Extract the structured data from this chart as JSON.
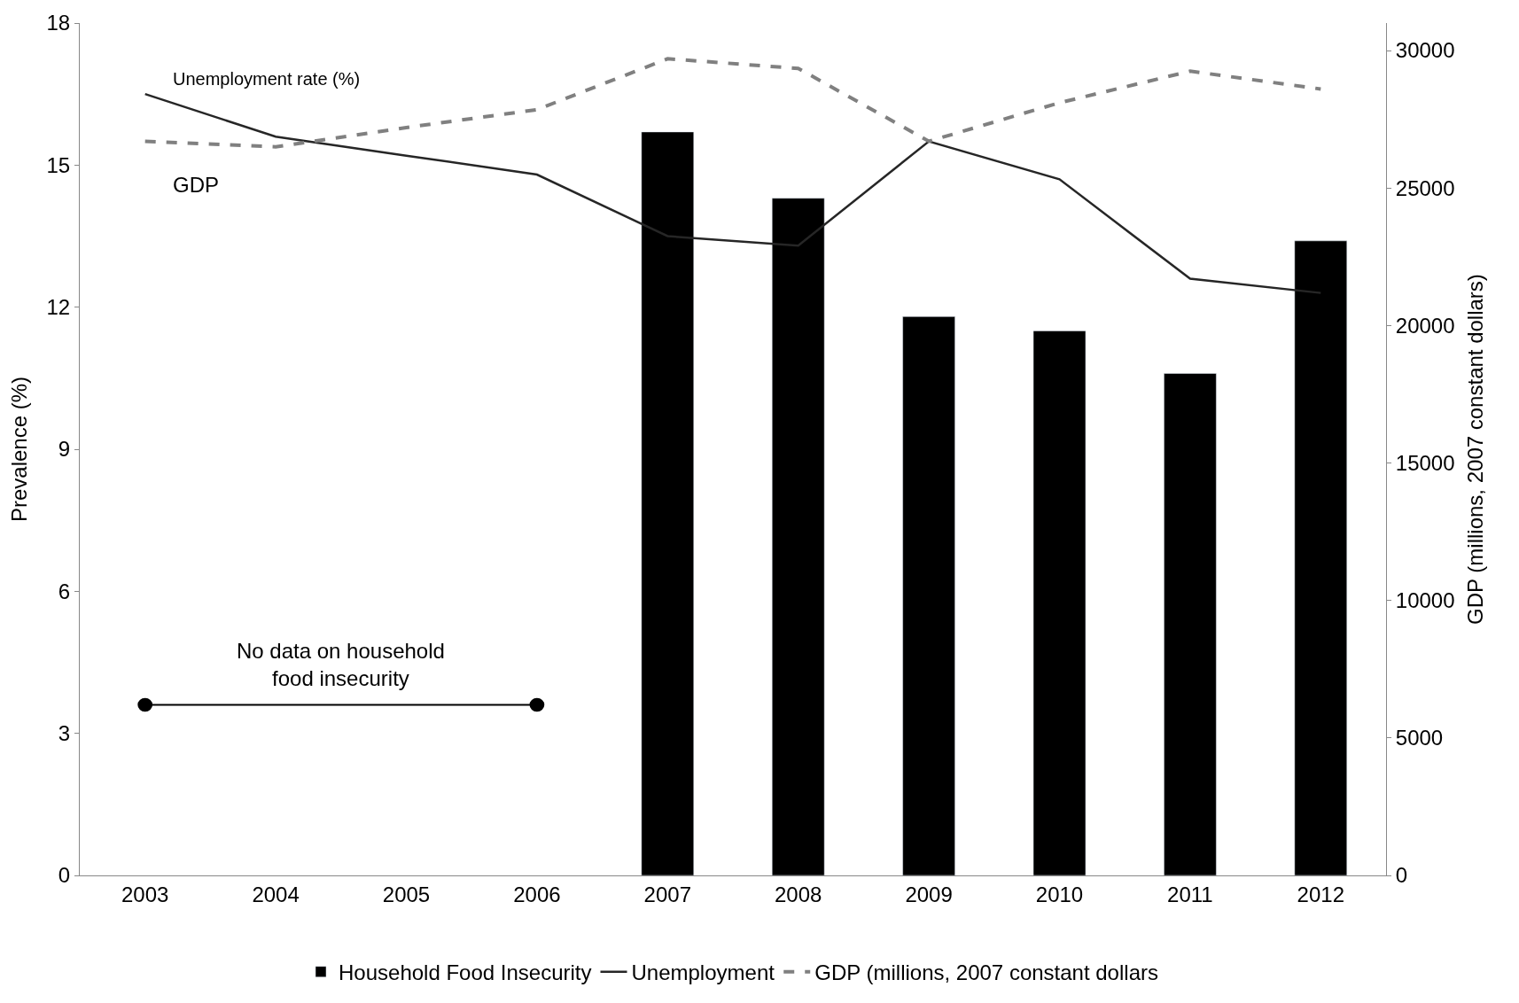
{
  "chart_data": {
    "type": "bar",
    "ylabel": "Prevalence (%)",
    "y2label": "GDP (millions, 2007 constant dollars)",
    "categories": [
      "2003",
      "2004",
      "2005",
      "2006",
      "2007",
      "2008",
      "2009",
      "2010",
      "2011",
      "2012"
    ],
    "series": [
      {
        "name": "Household Food Insecurity",
        "color": "#000000",
        "values": [
          null,
          null,
          null,
          null,
          15.7,
          14.3,
          11.8,
          11.5,
          10.6,
          13.4
        ]
      },
      {
        "name": "Unemployment",
        "type": "line",
        "color": "#262626",
        "line_style": "solid",
        "values": [
          16.5,
          15.6,
          15.2,
          14.8,
          13.5,
          13.3,
          15.5,
          14.7,
          12.6,
          12.3
        ]
      },
      {
        "name": "GDP (millions, 2007 constant dollars",
        "type": "line",
        "color": "#808080",
        "line_style": "dashed",
        "axis": "y2",
        "values": [
          26700,
          26500,
          27200,
          27850,
          29700,
          29350,
          26700,
          28100,
          29250,
          28600
        ]
      }
    ],
    "ylim": [
      0,
      18
    ],
    "yticks": [
      0,
      3,
      6,
      9,
      12,
      15,
      18
    ],
    "y2lim": [
      0,
      31000
    ],
    "y2ticks": [
      0,
      5000,
      10000,
      15000,
      20000,
      25000,
      30000
    ],
    "annotations": [
      "Unemployment rate (%)",
      "GDP",
      "No data on household\nfood insecurity"
    ],
    "legend": "bottom"
  }
}
